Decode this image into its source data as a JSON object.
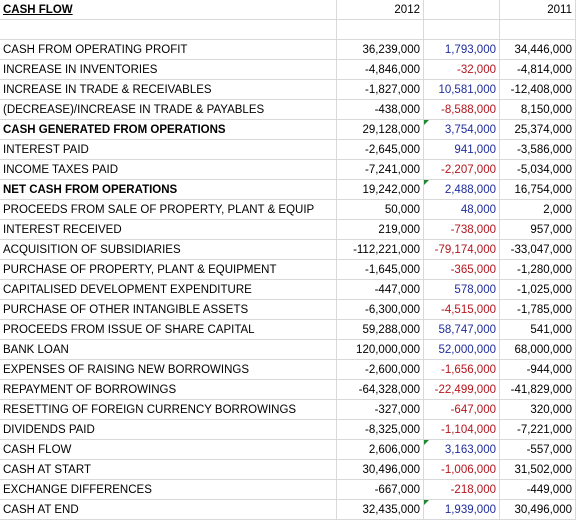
{
  "header": {
    "title": "CASH FLOW",
    "col_2012": "2012",
    "col_2011": "2011"
  },
  "rows": [
    {
      "label": "CASH FROM OPERATING PROFIT",
      "v2012": "36,239,000",
      "diff": "1,793,000",
      "diff_sign": "pos",
      "v2011": "34,446,000",
      "bold": false
    },
    {
      "label": "INCREASE IN INVENTORIES",
      "v2012": "-4,846,000",
      "diff": "-32,000",
      "diff_sign": "neg",
      "v2011": "-4,814,000",
      "bold": false
    },
    {
      "label": "INCREASE IN TRADE & RECEIVABLES",
      "v2012": "-1,827,000",
      "diff": "10,581,000",
      "diff_sign": "pos",
      "v2011": "-12,408,000",
      "bold": false
    },
    {
      "label": "(DECREASE)/INCREASE IN TRADE & PAYABLES",
      "v2012": "-438,000",
      "diff": "-8,588,000",
      "diff_sign": "neg",
      "v2011": "8,150,000",
      "bold": false
    },
    {
      "label": "CASH GENERATED FROM OPERATIONS",
      "v2012": "29,128,000",
      "diff": "3,754,000",
      "diff_sign": "pos",
      "v2011": "25,374,000",
      "bold": true,
      "marker": true
    },
    {
      "label": "INTEREST PAID",
      "v2012": "-2,645,000",
      "diff": "941,000",
      "diff_sign": "pos",
      "v2011": "-3,586,000",
      "bold": false
    },
    {
      "label": "INCOME TAXES PAID",
      "v2012": "-7,241,000",
      "diff": "-2,207,000",
      "diff_sign": "neg",
      "v2011": "-5,034,000",
      "bold": false
    },
    {
      "label": "NET CASH FROM OPERATIONS",
      "v2012": "19,242,000",
      "diff": "2,488,000",
      "diff_sign": "pos",
      "v2011": "16,754,000",
      "bold": true,
      "marker": true
    },
    {
      "label": "PROCEEDS FROM SALE OF PROPERTY, PLANT & EQUIP",
      "v2012": "50,000",
      "diff": "48,000",
      "diff_sign": "pos",
      "v2011": "2,000",
      "bold": false
    },
    {
      "label": "INTEREST RECEIVED",
      "v2012": "219,000",
      "diff": "-738,000",
      "diff_sign": "neg",
      "v2011": "957,000",
      "bold": false
    },
    {
      "label": "ACQUISITION OF SUBSIDIARIES",
      "v2012": "-112,221,000",
      "diff": "-79,174,000",
      "diff_sign": "neg",
      "v2011": "-33,047,000",
      "bold": false
    },
    {
      "label": "PURCHASE OF PROPERTY, PLANT & EQUIPMENT",
      "v2012": "-1,645,000",
      "diff": "-365,000",
      "diff_sign": "neg",
      "v2011": "-1,280,000",
      "bold": false
    },
    {
      "label": "CAPITALISED DEVELOPMENT EXPENDITURE",
      "v2012": "-447,000",
      "diff": "578,000",
      "diff_sign": "pos",
      "v2011": "-1,025,000",
      "bold": false
    },
    {
      "label": "PURCHASE OF OTHER INTANGIBLE ASSETS",
      "v2012": "-6,300,000",
      "diff": "-4,515,000",
      "diff_sign": "neg",
      "v2011": "-1,785,000",
      "bold": false
    },
    {
      "label": "PROCEEDS FROM ISSUE OF SHARE CAPITAL",
      "v2012": "59,288,000",
      "diff": "58,747,000",
      "diff_sign": "pos",
      "v2011": "541,000",
      "bold": false
    },
    {
      "label": "BANK LOAN",
      "v2012": "120,000,000",
      "diff": "52,000,000",
      "diff_sign": "pos",
      "v2011": "68,000,000",
      "bold": false
    },
    {
      "label": "EXPENSES OF RAISING NEW BORROWINGS",
      "v2012": "-2,600,000",
      "diff": "-1,656,000",
      "diff_sign": "neg",
      "v2011": "-944,000",
      "bold": false
    },
    {
      "label": "REPAYMENT OF BORROWINGS",
      "v2012": "-64,328,000",
      "diff": "-22,499,000",
      "diff_sign": "neg",
      "v2011": "-41,829,000",
      "bold": false
    },
    {
      "label": "RESETTING OF FOREIGN CURRENCY BORROWINGS",
      "v2012": "-327,000",
      "diff": "-647,000",
      "diff_sign": "neg",
      "v2011": "320,000",
      "bold": false
    },
    {
      "label": "DIVIDENDS PAID",
      "v2012": "-8,325,000",
      "diff": "-1,104,000",
      "diff_sign": "neg",
      "v2011": "-7,221,000",
      "bold": false
    },
    {
      "label": "CASH FLOW",
      "v2012": "2,606,000",
      "diff": "3,163,000",
      "diff_sign": "pos",
      "v2011": "-557,000",
      "bold": false,
      "marker": true
    },
    {
      "label": "CASH AT START",
      "v2012": "30,496,000",
      "diff": "-1,006,000",
      "diff_sign": "neg",
      "v2011": "31,502,000",
      "bold": false
    },
    {
      "label": "EXCHANGE DIFFERENCES",
      "v2012": "-667,000",
      "diff": "-218,000",
      "diff_sign": "neg",
      "v2011": "-449,000",
      "bold": false
    },
    {
      "label": "CASH AT END",
      "v2012": "32,435,000",
      "diff": "1,939,000",
      "diff_sign": "pos",
      "v2011": "30,496,000",
      "bold": false,
      "marker": true
    }
  ],
  "colors": {
    "positive_diff": "#1f2d9c",
    "negative_diff": "#b3161d",
    "grid": "#d9d9d9",
    "marker": "#1e8a2e"
  }
}
